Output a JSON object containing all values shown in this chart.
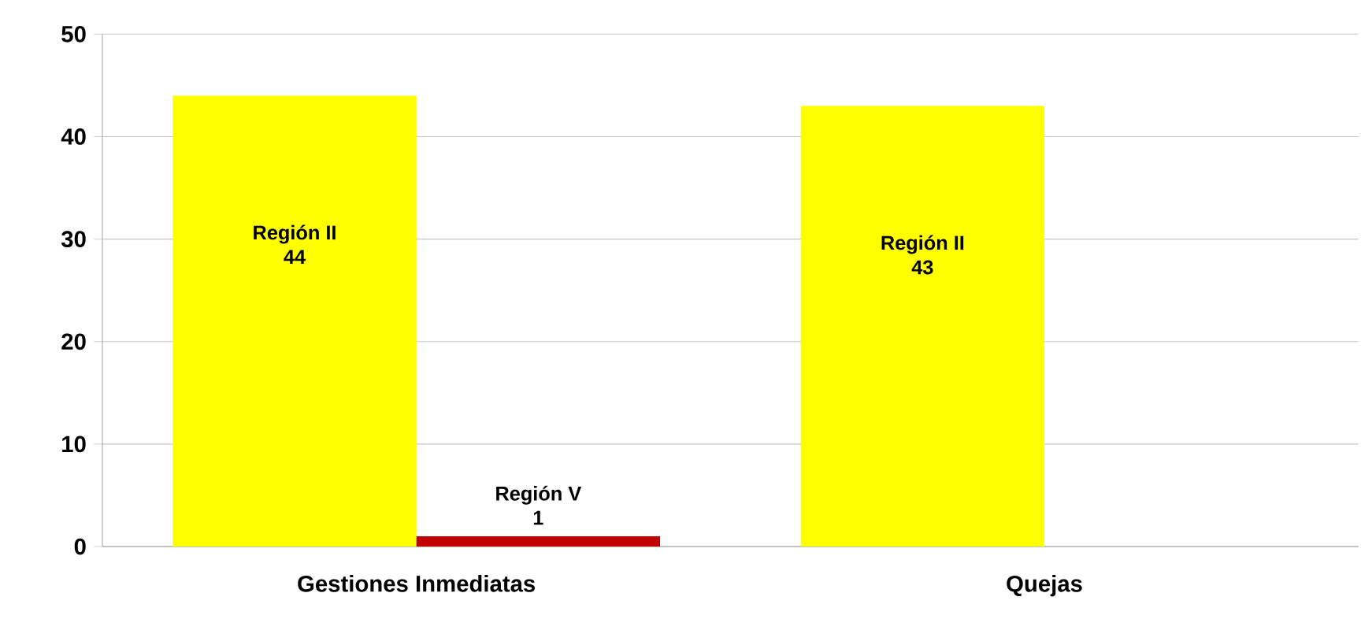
{
  "chart_data": {
    "type": "bar",
    "categories": [
      "Gestiones Inmediatas",
      "Quejas"
    ],
    "series": [
      {
        "name": "Región II",
        "color": "#ffff00",
        "values": [
          44,
          43
        ]
      },
      {
        "name": "Región V",
        "color": "#c00000",
        "values": [
          1,
          null
        ]
      }
    ],
    "ylim": [
      0,
      50
    ],
    "yticks": [
      0,
      10,
      20,
      30,
      40,
      50
    ],
    "grid": "y",
    "data_labels": true
  }
}
